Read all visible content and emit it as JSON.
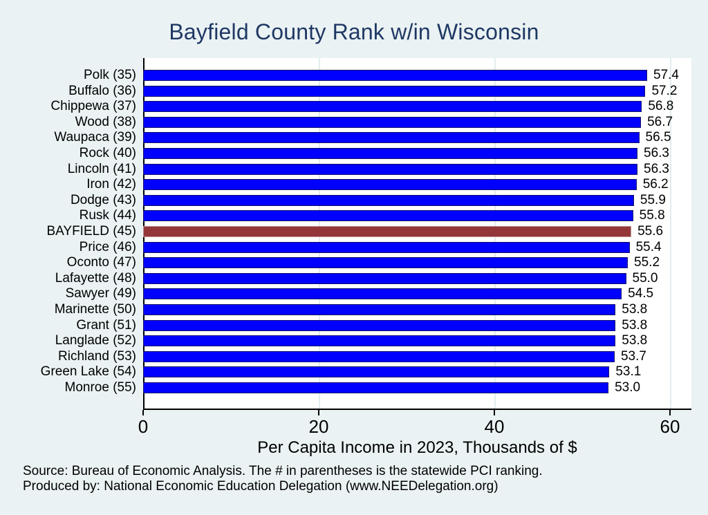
{
  "figure": {
    "title": "Bayfield County Rank w/in Wisconsin",
    "footer": {
      "line1": "Source: Bureau of Economic Analysis. The # in parentheses is the statewide PCI ranking.",
      "line2": "Produced by: National Economic Education Delegation (www.NEEDelegation.org)"
    }
  },
  "chart_data": {
    "type": "bar",
    "orientation": "horizontal",
    "title": "Bayfield County Rank w/in Wisconsin",
    "categories": [
      "Polk (35)",
      "Buffalo (36)",
      "Chippewa (37)",
      "Wood (38)",
      "Waupaca (39)",
      "Rock (40)",
      "Lincoln (41)",
      "Iron (42)",
      "Dodge (43)",
      "Rusk (44)",
      "BAYFIELD (45)",
      "Price (46)",
      "Oconto (47)",
      "Lafayette (48)",
      "Sawyer (49)",
      "Marinette (50)",
      "Grant (51)",
      "Langlade (52)",
      "Richland (53)",
      "Green Lake (54)",
      "Monroe (55)"
    ],
    "values": [
      57.4,
      57.2,
      56.8,
      56.7,
      56.5,
      56.3,
      56.3,
      56.2,
      55.9,
      55.8,
      55.6,
      55.4,
      55.2,
      55.0,
      54.5,
      53.8,
      53.8,
      53.8,
      53.7,
      53.1,
      53.0
    ],
    "value_label_decimals": 1,
    "highlight_index": 10,
    "highlight_category": "BAYFIELD (45)",
    "xlabel": "Per Capita Income in 2023, Thousands of $",
    "xticks": [
      0,
      20,
      40,
      60
    ],
    "xlim": [
      0,
      62.5
    ],
    "grid": true,
    "legend_position": "none",
    "colors": {
      "background": "#eaf2f3",
      "plot_background": "#ffffff",
      "bar": "#0000ff",
      "bar_border": "#11116b",
      "highlight": "#943639",
      "highlight_border": "#bd8f92",
      "gridline": "#e2ecee",
      "title": "#1f3864",
      "axis_line": "#000000",
      "text": "#000000"
    }
  }
}
